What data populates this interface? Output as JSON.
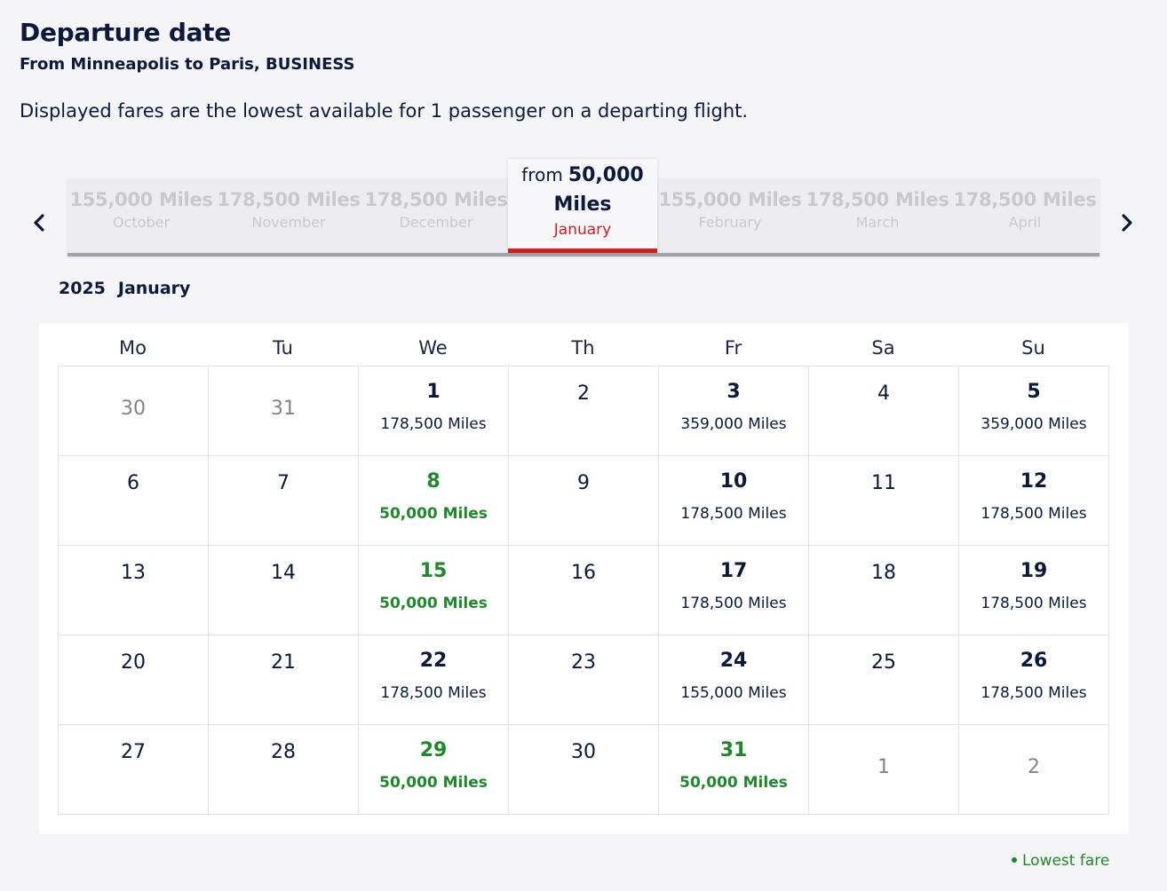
{
  "header": {
    "title": "Departure date",
    "subtitle": "From Minneapolis to Paris, BUSINESS",
    "info": "Displayed fares are the lowest available for 1 passenger on a departing flight."
  },
  "carousel": {
    "months": [
      {
        "miles": "155,000 Miles",
        "name": "October"
      },
      {
        "miles": "178,500 Miles",
        "name": "November"
      },
      {
        "miles": "178,500 Miles",
        "name": "December"
      },
      {
        "miles": "155,000 Miles",
        "name": "February"
      },
      {
        "miles": "178,500 Miles",
        "name": "March"
      },
      {
        "miles": "178,500 Miles",
        "name": "April"
      }
    ],
    "active": {
      "from": "from",
      "amount": "50,000",
      "unit": "Miles",
      "name": "January"
    }
  },
  "calendar": {
    "year": "2025",
    "month": "January",
    "weekdays": [
      "Mo",
      "Tu",
      "We",
      "Th",
      "Fr",
      "Sa",
      "Su"
    ],
    "days": [
      {
        "d": "30",
        "t": "muted"
      },
      {
        "d": "31",
        "t": "muted"
      },
      {
        "d": "1",
        "f": "178,500 Miles",
        "t": "fare"
      },
      {
        "d": "2",
        "t": "plain"
      },
      {
        "d": "3",
        "f": "359,000 Miles",
        "t": "fare"
      },
      {
        "d": "4",
        "t": "plain"
      },
      {
        "d": "5",
        "f": "359,000 Miles",
        "t": "fare"
      },
      {
        "d": "6",
        "t": "plain"
      },
      {
        "d": "7",
        "t": "plain"
      },
      {
        "d": "8",
        "f": "50,000 Miles",
        "t": "low"
      },
      {
        "d": "9",
        "t": "plain"
      },
      {
        "d": "10",
        "f": "178,500 Miles",
        "t": "fare"
      },
      {
        "d": "11",
        "t": "plain"
      },
      {
        "d": "12",
        "f": "178,500 Miles",
        "t": "fare"
      },
      {
        "d": "13",
        "t": "plain"
      },
      {
        "d": "14",
        "t": "plain"
      },
      {
        "d": "15",
        "f": "50,000 Miles",
        "t": "low"
      },
      {
        "d": "16",
        "t": "plain"
      },
      {
        "d": "17",
        "f": "178,500 Miles",
        "t": "fare"
      },
      {
        "d": "18",
        "t": "plain"
      },
      {
        "d": "19",
        "f": "178,500 Miles",
        "t": "fare"
      },
      {
        "d": "20",
        "t": "plain"
      },
      {
        "d": "21",
        "t": "plain"
      },
      {
        "d": "22",
        "f": "178,500 Miles",
        "t": "fare"
      },
      {
        "d": "23",
        "t": "plain"
      },
      {
        "d": "24",
        "f": "155,000 Miles",
        "t": "fare"
      },
      {
        "d": "25",
        "t": "plain"
      },
      {
        "d": "26",
        "f": "178,500 Miles",
        "t": "fare"
      },
      {
        "d": "27",
        "t": "plain"
      },
      {
        "d": "28",
        "t": "plain"
      },
      {
        "d": "29",
        "f": "50,000 Miles",
        "t": "low"
      },
      {
        "d": "30",
        "t": "plain"
      },
      {
        "d": "31",
        "f": "50,000 Miles",
        "t": "low"
      },
      {
        "d": "1",
        "t": "muted"
      },
      {
        "d": "2",
        "t": "muted"
      }
    ]
  },
  "legend": {
    "label": "Lowest fare",
    "color": "#1d8a2a"
  },
  "icons": {
    "prev": "chevron-left-icon",
    "next": "chevron-right-icon"
  }
}
